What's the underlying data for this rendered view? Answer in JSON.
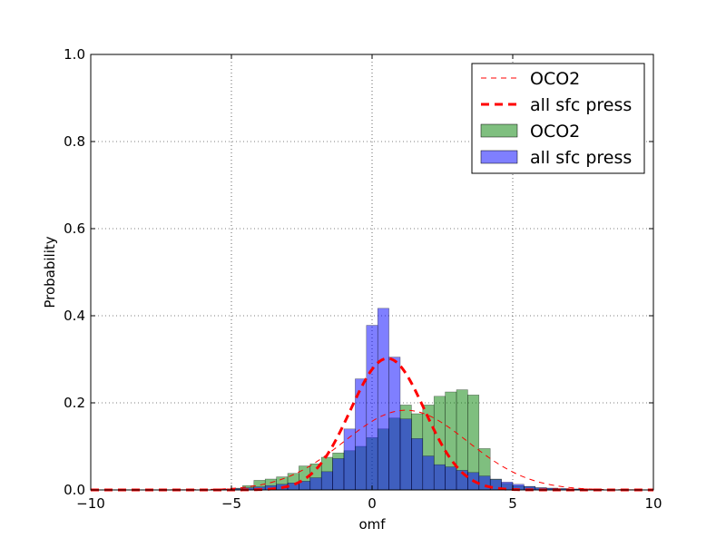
{
  "chart_data": {
    "type": "bar",
    "xlabel": "omf",
    "ylabel": "Probability",
    "xlim": [
      -10,
      10
    ],
    "ylim": [
      0,
      1.0
    ],
    "x_ticks": [
      -10,
      -5,
      0,
      5,
      10
    ],
    "x_tick_labels": [
      "−10",
      "−5",
      "0",
      "5",
      "10"
    ],
    "y_ticks": [
      0,
      0.2,
      0.4,
      0.6,
      0.8,
      1.0
    ],
    "y_tick_labels": [
      "0.0",
      "0.2",
      "0.4",
      "0.6",
      "0.8",
      "1.0"
    ],
    "grid": true,
    "legend_position": "top-right",
    "bin_edges": [
      -5.4,
      -5.0,
      -4.6,
      -4.2,
      -3.8,
      -3.4,
      -3.0,
      -2.6,
      -2.2,
      -1.8,
      -1.4,
      -1.0,
      -0.6,
      -0.2,
      0.2,
      0.6,
      1.0,
      1.4,
      1.8,
      2.2,
      2.6,
      3.0,
      3.4,
      3.8,
      4.2,
      4.6,
      5.0,
      5.4,
      5.8,
      6.2,
      6.6,
      7.0,
      7.4,
      7.8
    ],
    "series": [
      {
        "name": "OCO2",
        "kind": "histogram",
        "color": "#008000",
        "values": [
          0.002,
          0.004,
          0.01,
          0.022,
          0.025,
          0.03,
          0.038,
          0.055,
          0.06,
          0.075,
          0.085,
          0.09,
          0.1,
          0.12,
          0.14,
          0.165,
          0.195,
          0.175,
          0.195,
          0.215,
          0.225,
          0.23,
          0.218,
          0.095,
          0.025,
          0.015,
          0.01,
          0.008,
          0.005,
          0.004,
          0.003,
          0.002,
          0.001
        ]
      },
      {
        "name": "all sfc press",
        "kind": "histogram",
        "color": "#0000ff",
        "values": [
          0.002,
          0.003,
          0.005,
          0.007,
          0.01,
          0.013,
          0.016,
          0.02,
          0.028,
          0.042,
          0.072,
          0.14,
          0.255,
          0.378,
          0.417,
          0.305,
          0.163,
          0.118,
          0.078,
          0.058,
          0.053,
          0.045,
          0.04,
          0.032,
          0.024,
          0.018,
          0.013,
          0.008,
          0.005,
          0.004,
          0.003,
          0.002,
          0.001
        ]
      },
      {
        "name": "OCO2",
        "kind": "gaussian-fit",
        "style": "thin dashed",
        "color": "#ff0000",
        "mean": 1.2,
        "sd": 2.2,
        "peak": 0.183
      },
      {
        "name": "all sfc press",
        "kind": "gaussian-fit",
        "style": "thick dashed",
        "color": "#ff0000",
        "mean": 0.55,
        "sd": 1.32,
        "peak": 0.302
      }
    ]
  }
}
